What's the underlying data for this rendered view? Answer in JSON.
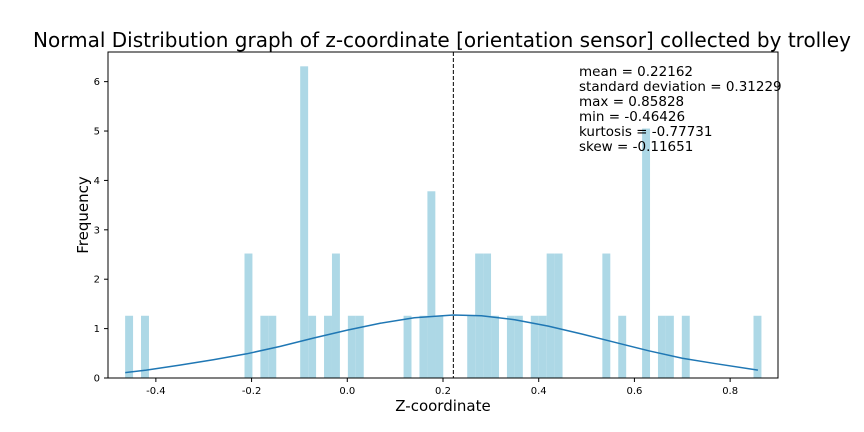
{
  "chart_data": {
    "type": "bar",
    "title": "Normal Distribution graph of z-coordinate [orientation sensor] collected by trolley",
    "xlabel": "Z-coordinate",
    "ylabel": "Frequency",
    "xlim": [
      -0.5,
      0.9
    ],
    "ylim": [
      0,
      6.6
    ],
    "xticks": [
      "-0.4",
      "-0.2",
      "0.0",
      "0.2",
      "0.4",
      "0.6",
      "0.8"
    ],
    "yticks": [
      "0",
      "1",
      "2",
      "3",
      "4",
      "5",
      "6"
    ],
    "grid": false,
    "bar_color": "#add8e6",
    "curve_color": "#1f77b4",
    "mean_line_x": 0.22162,
    "histogram": {
      "name": "",
      "bin_width": 0.0166,
      "bins": [
        {
          "x": -0.4559,
          "y": 1.26
        },
        {
          "x": -0.4227,
          "y": 1.26
        },
        {
          "x": -0.2065,
          "y": 2.52
        },
        {
          "x": -0.1733,
          "y": 1.26
        },
        {
          "x": -0.1567,
          "y": 1.26
        },
        {
          "x": -0.0901,
          "y": 6.31
        },
        {
          "x": -0.0735,
          "y": 1.26
        },
        {
          "x": -0.0403,
          "y": 1.26
        },
        {
          "x": -0.0237,
          "y": 2.52
        },
        {
          "x": 0.0095,
          "y": 1.26
        },
        {
          "x": 0.0261,
          "y": 1.26
        },
        {
          "x": 0.1259,
          "y": 1.26
        },
        {
          "x": 0.1591,
          "y": 1.26
        },
        {
          "x": 0.1757,
          "y": 1.26
        },
        {
          "x": 0.1757,
          "y": 1.26
        },
        {
          "x": 0.1757,
          "y": 3.78
        },
        {
          "x": 0.1923,
          "y": 1.26
        },
        {
          "x": 0.2589,
          "y": 1.26
        },
        {
          "x": 0.2755,
          "y": 2.52
        },
        {
          "x": 0.2921,
          "y": 2.52
        },
        {
          "x": 0.3087,
          "y": 1.26
        },
        {
          "x": 0.3419,
          "y": 1.26
        },
        {
          "x": 0.3585,
          "y": 1.26
        },
        {
          "x": 0.3917,
          "y": 1.26
        },
        {
          "x": 0.4083,
          "y": 1.26
        },
        {
          "x": 0.4249,
          "y": 2.52
        },
        {
          "x": 0.4415,
          "y": 2.52
        },
        {
          "x": 0.5413,
          "y": 2.52
        },
        {
          "x": 0.5745,
          "y": 1.26
        },
        {
          "x": 0.6243,
          "y": 5.05
        },
        {
          "x": 0.6575,
          "y": 1.26
        },
        {
          "x": 0.6741,
          "y": 1.26
        },
        {
          "x": 0.7073,
          "y": 1.26
        },
        {
          "x": 0.8571,
          "y": 1.26
        }
      ]
    },
    "curve": {
      "name": "",
      "points": [
        [
          -0.464,
          0.11
        ],
        [
          -0.42,
          0.16
        ],
        [
          -0.35,
          0.26
        ],
        [
          -0.28,
          0.37
        ],
        [
          -0.21,
          0.49
        ],
        [
          -0.14,
          0.64
        ],
        [
          -0.07,
          0.81
        ],
        [
          0.0,
          0.97
        ],
        [
          0.07,
          1.11
        ],
        [
          0.14,
          1.22
        ],
        [
          0.2216,
          1.275
        ],
        [
          0.28,
          1.26
        ],
        [
          0.35,
          1.18
        ],
        [
          0.42,
          1.05
        ],
        [
          0.49,
          0.89
        ],
        [
          0.56,
          0.72
        ],
        [
          0.63,
          0.55
        ],
        [
          0.7,
          0.4
        ],
        [
          0.77,
          0.29
        ],
        [
          0.858,
          0.16
        ]
      ]
    },
    "annotations": [
      "mean = 0.22162",
      "standard deviation = 0.31229",
      "max = 0.85828",
      "min = -0.46426",
      "kurtosis = -0.77731",
      "skew = -0.11651"
    ]
  }
}
